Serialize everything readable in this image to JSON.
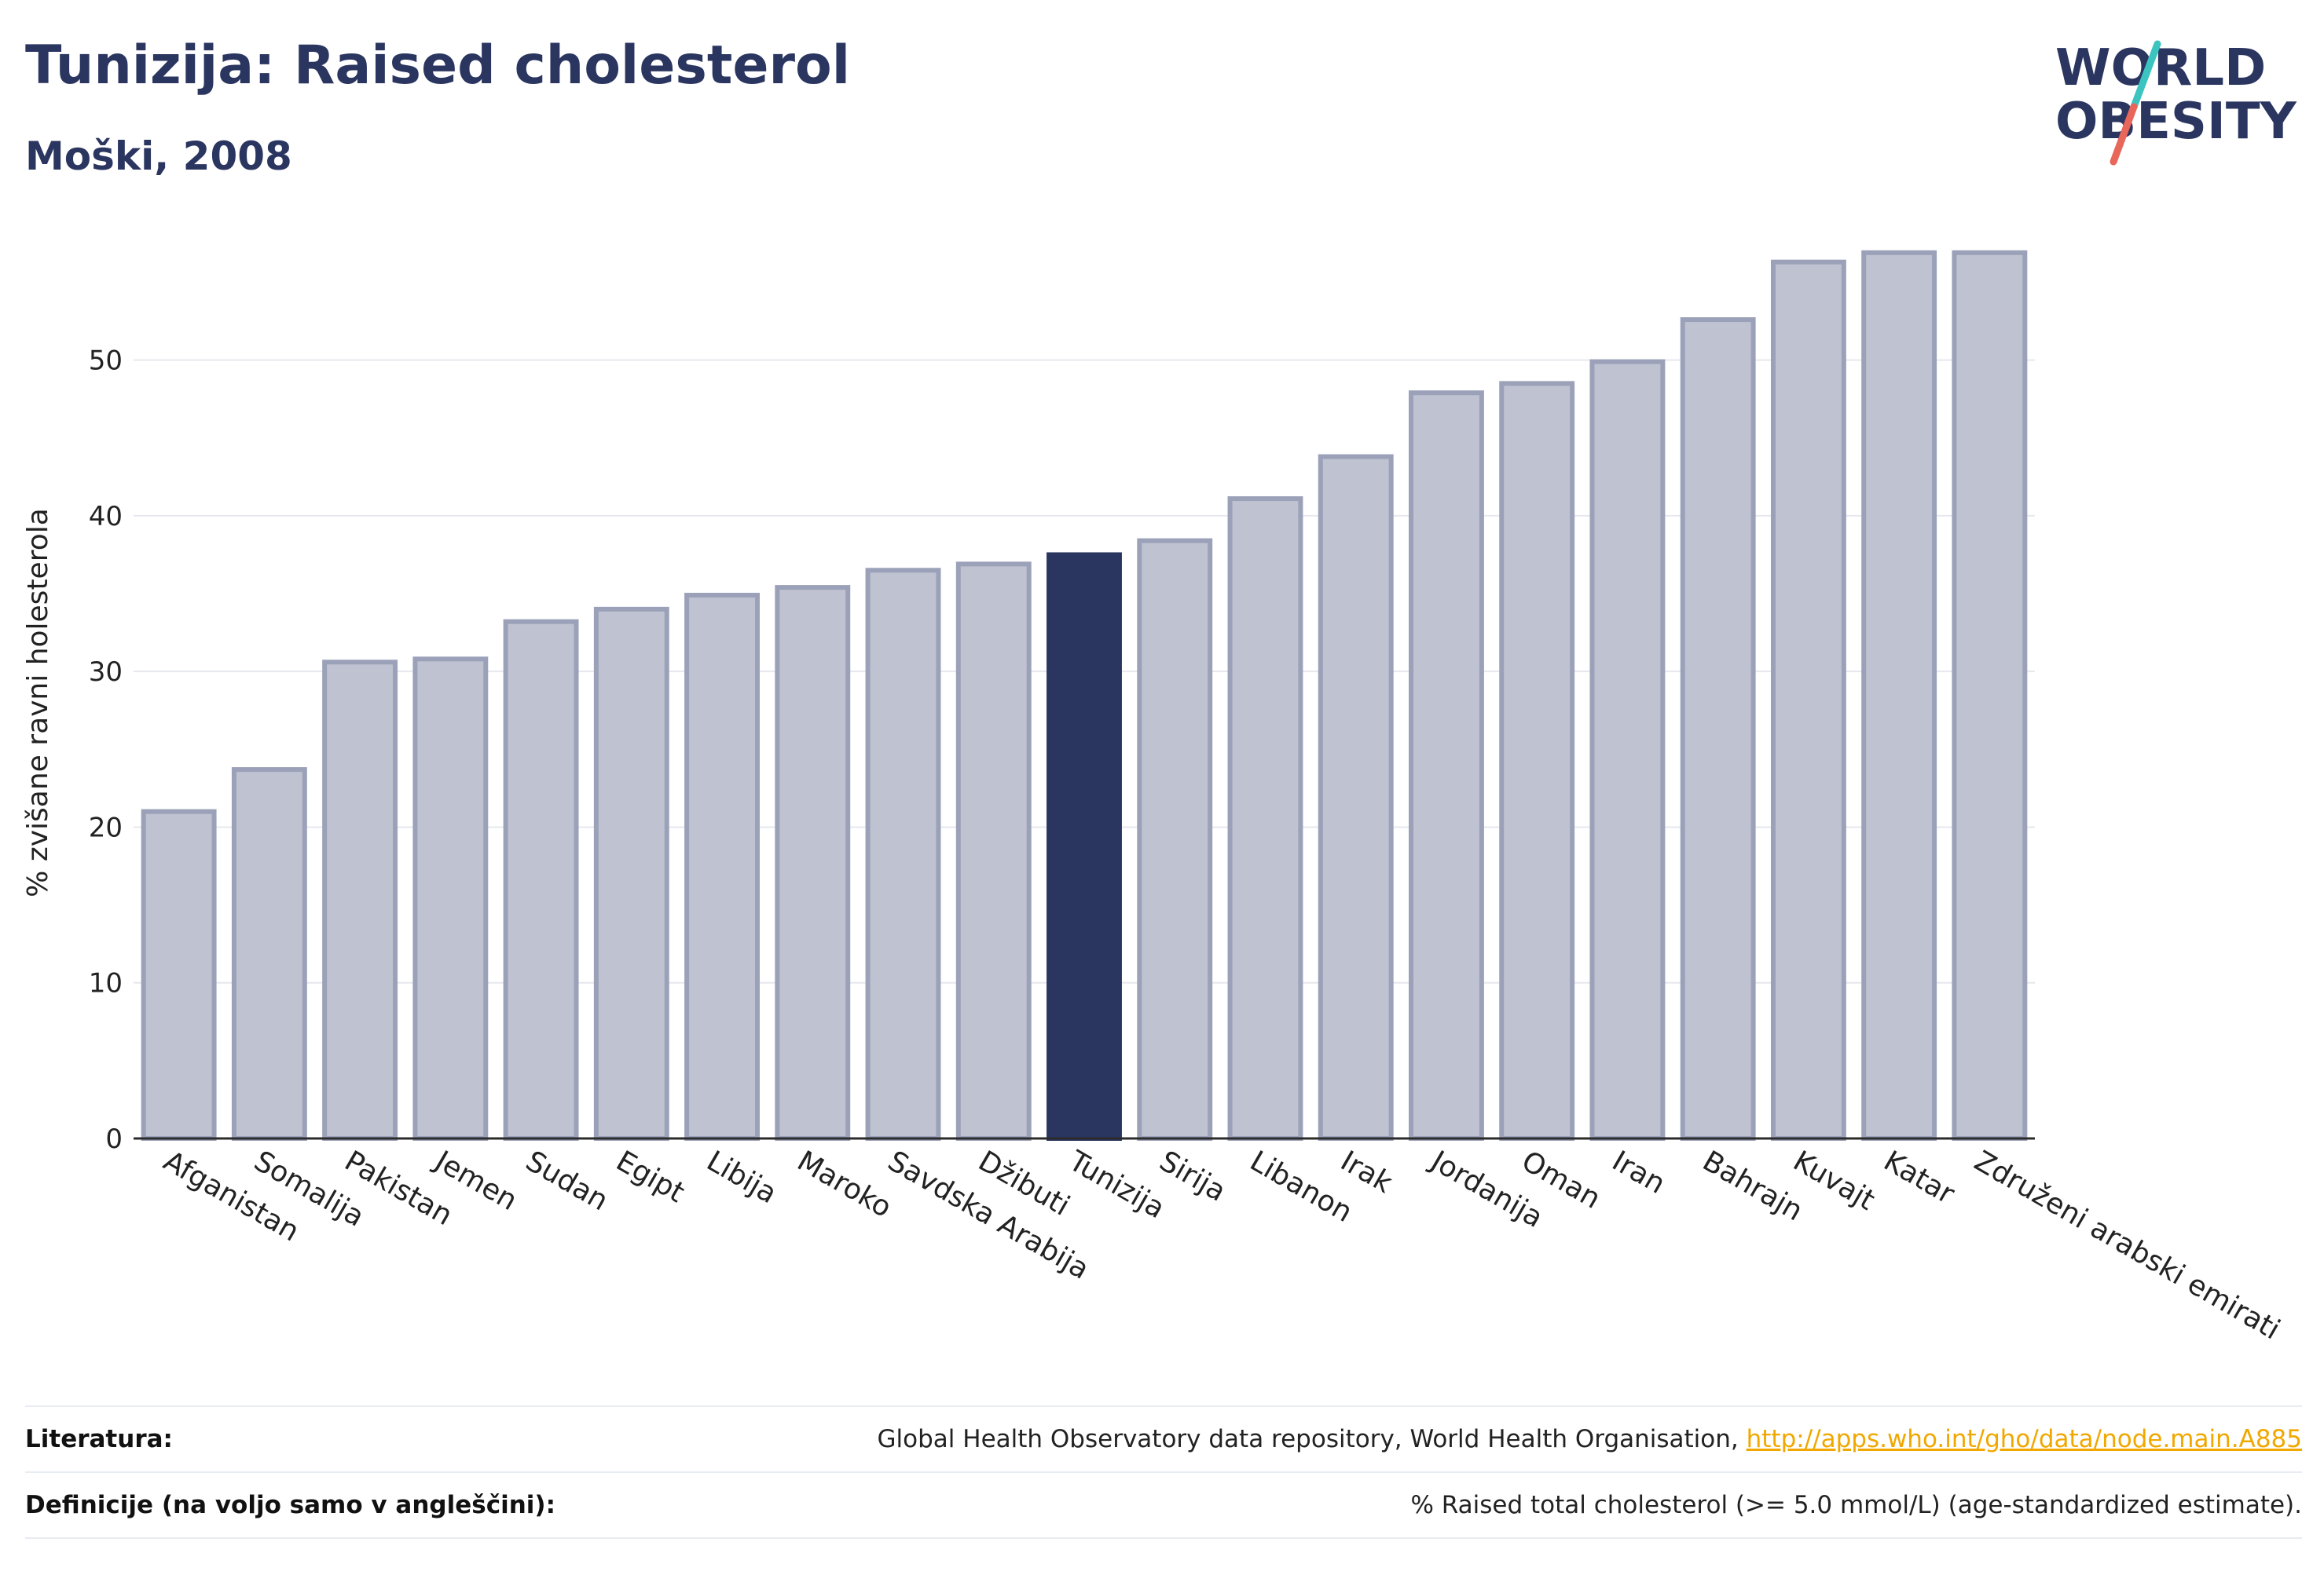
{
  "header": {
    "title": "Tunizija: Raised cholesterol",
    "subtitle": "Moški, 2008"
  },
  "logo": {
    "line1": "WORLD",
    "line2": "OBESITY",
    "slash_colors": [
      "#3cc4c0",
      "#e8665a"
    ]
  },
  "chart_data": {
    "type": "bar",
    "ylabel": "% zvišane ravni holesterola",
    "ylim": [
      0,
      58
    ],
    "yticks": [
      0,
      10,
      20,
      30,
      40,
      50
    ],
    "grid": true,
    "highlight": "Tunizija",
    "colors": {
      "bar": "#bfc2d0",
      "bar_edge": "#9ba1b8",
      "highlight": "#2b3660",
      "grid": "#e6e8ee",
      "axis": "#2b2b2b"
    },
    "categories": [
      "Afganistan",
      "Somalija",
      "Pakistan",
      "Jemen",
      "Sudan",
      "Egipt",
      "Libija",
      "Maroko",
      "Savdska Arabija",
      "Džibuti",
      "Tunizija",
      "Sirija",
      "Libanon",
      "Irak",
      "Jordanija",
      "Oman",
      "Iran",
      "Bahrajn",
      "Kuvajt",
      "Katar",
      "Združeni arabski emirati"
    ],
    "values": [
      21.0,
      23.7,
      30.6,
      30.8,
      33.2,
      34.0,
      34.9,
      35.4,
      36.5,
      36.9,
      37.5,
      38.4,
      41.1,
      43.8,
      47.9,
      48.5,
      49.9,
      52.6,
      56.3,
      56.9,
      56.9
    ]
  },
  "footer": {
    "sources_label": "Literatura:",
    "sources_text": "Global Health Observatory data repository, World Health Organisation, ",
    "sources_link": "http://apps.who.int/gho/data/node.main.A885",
    "definitions_label": "Definicije (na voljo samo v angleščini):",
    "definitions_text": "% Raised total cholesterol (>= 5.0 mmol/L) (age-standardized estimate)."
  }
}
